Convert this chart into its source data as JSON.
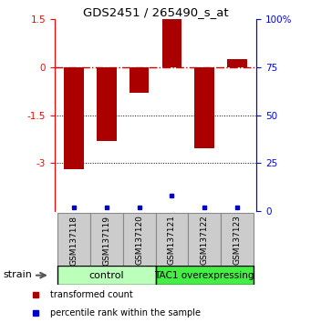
{
  "title": "GDS2451 / 265490_s_at",
  "samples": [
    "GSM137118",
    "GSM137119",
    "GSM137120",
    "GSM137121",
    "GSM137122",
    "GSM137123"
  ],
  "transformed_counts": [
    -3.2,
    -2.3,
    -0.8,
    1.55,
    -2.55,
    0.25
  ],
  "percentile_ranks": [
    2,
    2,
    2,
    8,
    2,
    2
  ],
  "ylim_left": [
    -4.5,
    1.5
  ],
  "ylim_right": [
    0,
    100
  ],
  "left_yticks": [
    1.5,
    0,
    -1.5,
    -3
  ],
  "left_yticklabels": [
    "1.5",
    "0",
    "-1.5",
    "-3"
  ],
  "right_yticks": [
    100,
    75,
    50,
    25,
    0
  ],
  "right_yticklabels": [
    "100%",
    "75",
    "50",
    "25",
    "0"
  ],
  "bar_color": "#aa0000",
  "percentile_color": "#0000cc",
  "hline_color": "#cc0000",
  "dotted_lines": [
    -1.5,
    -3
  ],
  "bar_width": 0.6,
  "control_color": "#bbffbb",
  "tac1_color": "#44ee44",
  "sample_box_color": "#cccccc",
  "legend_red_label": "transformed count",
  "legend_blue_label": "percentile rank within the sample",
  "strain_label": "strain"
}
